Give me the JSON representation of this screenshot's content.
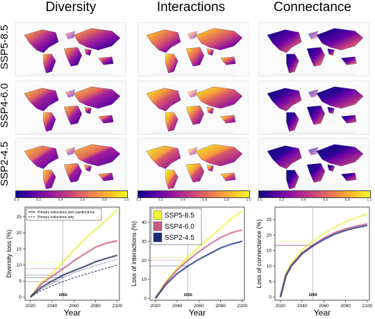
{
  "maps": {
    "column_titles": [
      "Diversity",
      "Interactions",
      "Connectance"
    ],
    "row_labels": [
      "SSP5-8.5",
      "SSP4-6.0",
      "SSP2-4.5"
    ],
    "colorbar_ticks": [
      "0.0",
      "0.2",
      "0.4",
      "0.6",
      "0.8",
      "1.0"
    ],
    "colors": {
      "low": "#0d0887",
      "mid": "#cc4778",
      "high": "#f0f921"
    }
  },
  "chart_data": [
    {
      "type": "line",
      "xlabel": "Year",
      "ylabel": "Diversity loss (%)",
      "xlim": [
        2015,
        2102
      ],
      "ylim": [
        -1,
        28
      ],
      "xticks": [
        "2020",
        "2040",
        "2060",
        "2080",
        "2100"
      ],
      "yticks": [
        "0",
        "5",
        "10",
        "15",
        "20",
        "25"
      ],
      "annotation": "2050",
      "legend": [
        "Primary extinctions  and coextinctions",
        "Primary extinctions only"
      ],
      "legend_position": "top-left",
      "x": [
        2020,
        2030,
        2040,
        2050,
        2060,
        2070,
        2080,
        2090,
        2100
      ],
      "series": [
        {
          "values": [
            0,
            4.5,
            7.5,
            10.8,
            14.5,
            18,
            21,
            24,
            27
          ],
          "color": "#e6ef3c",
          "style": "solid"
        },
        {
          "values": [
            0,
            4,
            6.5,
            8.8,
            11.2,
            13.5,
            15.5,
            16.8,
            17.5
          ],
          "color": "#c2577f",
          "style": "solid"
        },
        {
          "values": [
            0,
            3,
            5,
            6.8,
            8.2,
            9.5,
            11,
            12,
            13
          ],
          "color": "#1f2c5a",
          "style": "solid"
        },
        {
          "values": [
            0,
            2.5,
            4.3,
            6,
            7.5,
            8.7,
            9.8,
            10.8,
            11.8
          ],
          "color": "#1f2c5a",
          "style": "dotted"
        },
        {
          "values": [
            0,
            2,
            3.5,
            4.8,
            6,
            7,
            8,
            9,
            10
          ],
          "color": "#1f2c5a",
          "style": "dashed"
        }
      ]
    },
    {
      "type": "line",
      "xlabel": "Year",
      "ylabel": "Loss of interactions (%)",
      "xlim": [
        2015,
        2102
      ],
      "ylim": [
        -1,
        48
      ],
      "xticks": [
        "2020",
        "2040",
        "2060",
        "2080",
        "2100"
      ],
      "yticks": [
        "0",
        "10",
        "20",
        "30",
        "40"
      ],
      "annotation": "2050",
      "legend_position": "top-left",
      "x": [
        2020,
        2030,
        2040,
        2050,
        2060,
        2070,
        2080,
        2090,
        2100
      ],
      "series": [
        {
          "name": "SSP5-8.5",
          "values": [
            0,
            9,
            16,
            21.5,
            27,
            32,
            37,
            42,
            46
          ],
          "color": "#f3f335"
        },
        {
          "name": "SSP4-6.0",
          "values": [
            0,
            8.5,
            15,
            20,
            24.5,
            28.5,
            32,
            34.5,
            36
          ],
          "color": "#c95b84"
        },
        {
          "name": "SSP2-4.5",
          "values": [
            0,
            7.5,
            13,
            17,
            20.5,
            23.5,
            26.5,
            28.5,
            30
          ],
          "color": "#1a2a7a"
        }
      ]
    },
    {
      "type": "line",
      "xlabel": "Year",
      "ylabel": "Loss of connectance (%)",
      "xlim": [
        2015,
        2102
      ],
      "ylim": [
        -1,
        29
      ],
      "xticks": [
        "2020",
        "2040",
        "2060",
        "2080",
        "2100"
      ],
      "yticks": [
        "0",
        "5",
        "10",
        "15",
        "20",
        "25"
      ],
      "annotation": "2050",
      "x": [
        2020,
        2025,
        2030,
        2040,
        2050,
        2060,
        2070,
        2080,
        2090,
        2100
      ],
      "series": [
        {
          "values": [
            0,
            7.5,
            11,
            15.2,
            18,
            20.5,
            22.5,
            24.3,
            25.6,
            26.8
          ],
          "color": "#eef04a"
        },
        {
          "values": [
            0,
            7,
            10.2,
            14.3,
            16.8,
            19,
            20.8,
            22,
            22.9,
            23.6
          ],
          "color": "#c95b84"
        },
        {
          "values": [
            0,
            6.8,
            10,
            14,
            16.5,
            18.6,
            20.3,
            21.5,
            22.4,
            23.1
          ],
          "color": "#1a2a7a"
        }
      ]
    }
  ]
}
